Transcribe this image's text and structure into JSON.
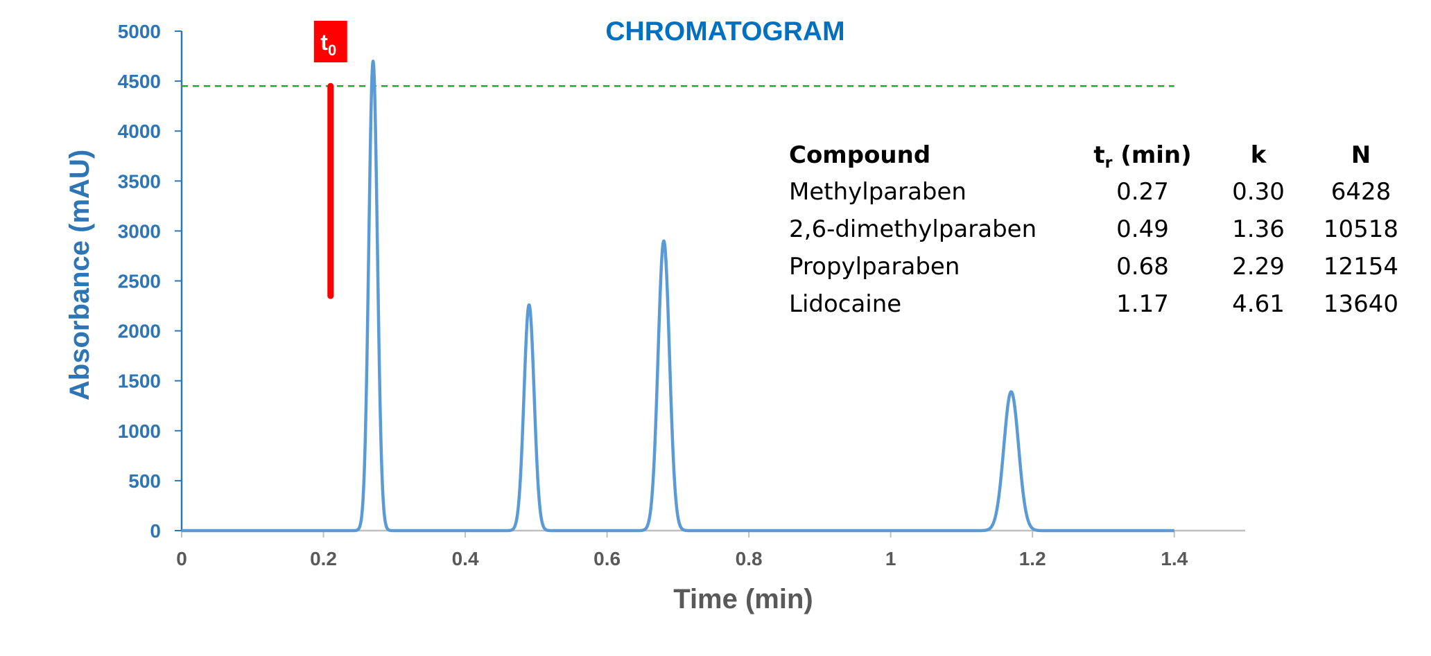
{
  "chart_data": {
    "type": "line",
    "title": "CHROMATOGRAM",
    "xlabel": "Time (min)",
    "ylabel": "Absorbance (mAU)",
    "xlim": [
      0,
      1.5
    ],
    "ylim": [
      0,
      5000
    ],
    "x_ticks": [
      "0",
      "0.2",
      "0.4",
      "0.6",
      "0.8",
      "1",
      "1.2",
      "1.4"
    ],
    "x_tick_values": [
      0,
      0.2,
      0.4,
      0.6,
      0.8,
      1.0,
      1.2,
      1.4
    ],
    "y_ticks": [
      "0",
      "500",
      "1000",
      "1500",
      "2000",
      "2500",
      "3000",
      "3500",
      "4000",
      "4500",
      "5000"
    ],
    "y_tick_values": [
      0,
      500,
      1000,
      1500,
      2000,
      2500,
      3000,
      3500,
      4000,
      4500,
      5000
    ],
    "grid": false,
    "series": [
      {
        "x_range": [
          0,
          1.4
        ],
        "color": "#5b9bd5",
        "peaks": [
          {
            "x": 0.27,
            "y": 4700
          },
          {
            "x": 0.49,
            "y": 2260
          },
          {
            "x": 0.68,
            "y": 2900
          },
          {
            "x": 1.17,
            "y": 1390
          }
        ]
      }
    ],
    "reference_line": {
      "y": 4450,
      "x_range": [
        0,
        1.4
      ],
      "color": "#1aaa3a",
      "style": "dashed"
    },
    "t0_marker": {
      "label": "t",
      "subscript": "0",
      "x": 0.21,
      "y_range": [
        2350,
        4450
      ],
      "color": "#ff0000"
    },
    "table": {
      "headers": [
        {
          "text": "Compound",
          "sub": ""
        },
        {
          "text": "t",
          "sub": "r",
          "suffix": " (min)"
        },
        {
          "text": "k",
          "sub": ""
        },
        {
          "text": "N",
          "sub": ""
        }
      ],
      "rows": [
        [
          "Methylparaben",
          "0.27",
          "0.30",
          "6428"
        ],
        [
          "2,6-dimethylparaben",
          "0.49",
          "1.36",
          "10518"
        ],
        [
          "Propylparaben",
          "0.68",
          "2.29",
          "12154"
        ],
        [
          "Lidocaine",
          "1.17",
          "4.61",
          "13640"
        ]
      ]
    }
  },
  "colors": {
    "y_axis_text": "#2e75b6",
    "title": "#0070c0",
    "x_axis_text": "#595959",
    "axis_line": "#bfbfbf",
    "y_axis_line": "#2e75b6"
  }
}
